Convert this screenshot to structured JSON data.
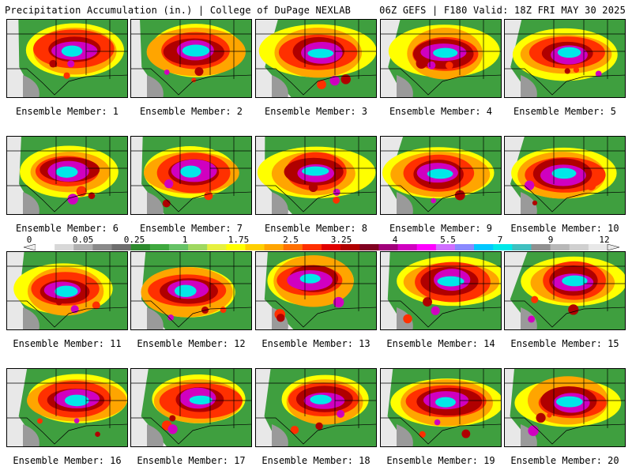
{
  "header": {
    "left": "Precipitation Accumulation (in.) | College of DuPage NEXLAB",
    "right": "06Z GEFS | F180 Valid: 18Z FRI MAY 30 2025"
  },
  "panels": [
    {
      "label": "Ensemble Member: 1"
    },
    {
      "label": "Ensemble Member: 2"
    },
    {
      "label": "Ensemble Member: 3"
    },
    {
      "label": "Ensemble Member: 4"
    },
    {
      "label": "Ensemble Member: 5"
    },
    {
      "label": "Ensemble Member: 6"
    },
    {
      "label": "Ensemble Member: 7"
    },
    {
      "label": "Ensemble Member: 8"
    },
    {
      "label": "Ensemble Member: 9"
    },
    {
      "label": "Ensemble Member: 10"
    },
    {
      "label": "Ensemble Member: 11"
    },
    {
      "label": "Ensemble Member: 12"
    },
    {
      "label": "Ensemble Member: 13"
    },
    {
      "label": "Ensemble Member: 14"
    },
    {
      "label": "Ensemble Member: 15"
    },
    {
      "label": "Ensemble Member: 16"
    },
    {
      "label": "Ensemble Member: 17"
    },
    {
      "label": "Ensemble Member: 18"
    },
    {
      "label": "Ensemble Member: 19"
    },
    {
      "label": "Ensemble Member: 20"
    }
  ],
  "colorbar": {
    "ticks": [
      "0",
      "0.05",
      "0.25",
      "1",
      "1.75",
      "2.5",
      "3.25",
      "4",
      "5.5",
      "7",
      "9",
      "12"
    ],
    "colors": [
      "#ffffff",
      "#d8d8d8",
      "#b0b0b0",
      "#8a8a8a",
      "#6e6e6e",
      "#2e8b2e",
      "#3fa83f",
      "#66c266",
      "#9fd860",
      "#e6f040",
      "#ffff00",
      "#ffd000",
      "#ffa500",
      "#ff7000",
      "#ff3000",
      "#e00000",
      "#b00000",
      "#800020",
      "#a0007a",
      "#d000c0",
      "#ff00ff",
      "#d070ff",
      "#8a8aff",
      "#00c8ff",
      "#00e8e8",
      "#40c0c0",
      "#909090",
      "#b8b8b8",
      "#d0d0d0",
      "#e8e8e8"
    ]
  }
}
